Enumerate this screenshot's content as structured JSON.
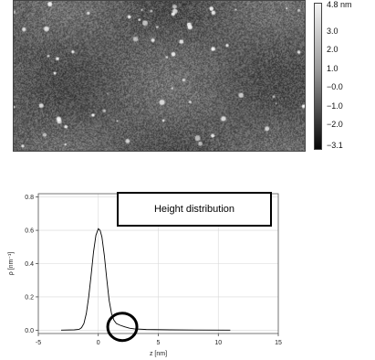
{
  "afm_image": {
    "colorbar": {
      "gradient_top": "#f4f4f4",
      "gradient_bottom": "#050505",
      "labels": [
        "4.8 nm",
        "3.0",
        "2.0",
        "1.0",
        "−0.0",
        "−1.0",
        "−2.0",
        "−3.1"
      ]
    }
  },
  "chart_data": {
    "type": "line",
    "title": "",
    "legend_text": "Height distribution",
    "xlabel": "z [nm]",
    "ylabel": "ρ [nm⁻¹]",
    "xlim": [
      -5,
      15
    ],
    "ylim": [
      -0.02,
      0.82
    ],
    "xticks": [
      "-5",
      "0",
      "5",
      "10",
      "15"
    ],
    "yticks": [
      "0.0",
      "0.2",
      "0.4",
      "0.6",
      "0.8"
    ],
    "grid": true,
    "annotation": "circle highlighting the right tail near z ≈ 2 nm",
    "series": [
      {
        "x": [
          -3.1,
          -2.0,
          -1.6,
          -1.4,
          -1.2,
          -1.0,
          -0.8,
          -0.6,
          -0.4,
          -0.2,
          0.0,
          0.15,
          0.3,
          0.5,
          0.7,
          0.9,
          1.1,
          1.3,
          1.5,
          1.8,
          2.2,
          2.6,
          3.0,
          4.0,
          6.0,
          8.0,
          11.0
        ],
        "values": [
          0.0,
          0.002,
          0.005,
          0.015,
          0.04,
          0.1,
          0.2,
          0.33,
          0.47,
          0.57,
          0.61,
          0.6,
          0.56,
          0.45,
          0.31,
          0.18,
          0.1,
          0.06,
          0.04,
          0.03,
          0.02,
          0.012,
          0.008,
          0.004,
          0.002,
          0.001,
          0.0
        ]
      }
    ]
  }
}
